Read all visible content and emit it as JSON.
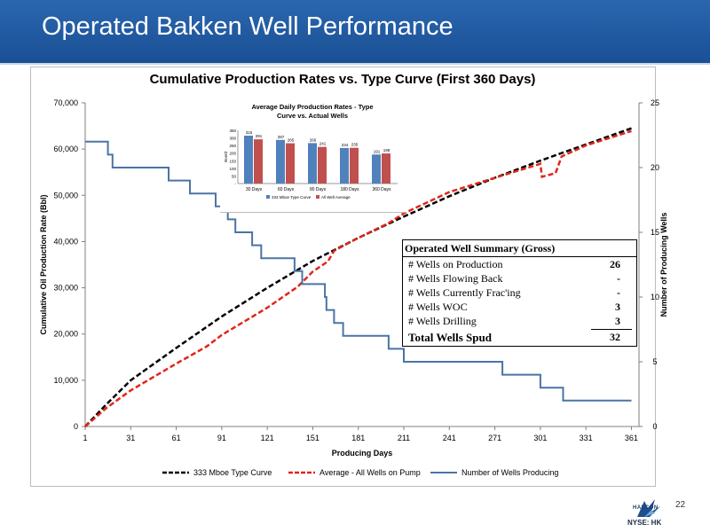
{
  "slide": {
    "title": "Operated Bakken Well Performance",
    "page_number": "22",
    "logo_text": "HALCÓN",
    "ticker": "NYSE: HK"
  },
  "summary": {
    "title": "Operated Well Summary (Gross)",
    "rows": [
      {
        "label": "# Wells on Production",
        "value": "26"
      },
      {
        "label": "# Wells Flowing Back",
        "value": "-"
      },
      {
        "label": "# Wells Currently Frac'ing",
        "value": "-"
      },
      {
        "label": "# Wells WOC",
        "value": "3"
      },
      {
        "label": "# Wells Drilling",
        "value": "3"
      }
    ],
    "total_label": "Total Wells Spud",
    "total_value": "32"
  },
  "colors": {
    "type_curve": "#000000",
    "average": "#e0261b",
    "wells": "#4a74a6",
    "header": "#1f5aa2"
  },
  "chart_data": [
    {
      "type": "line",
      "title": "Cumulative Production Rates vs. Type Curve (First 360 Days)",
      "xlabel": "Producing Days",
      "ylabel": "Cumulative Oil Production Rate (Bbl)",
      "y2label": "Number of Producing Wells",
      "xlim": [
        1,
        366
      ],
      "ylim": [
        0,
        70000
      ],
      "y2lim": [
        0,
        25
      ],
      "x_ticks": [
        1,
        31,
        61,
        91,
        121,
        151,
        181,
        211,
        241,
        271,
        301,
        331,
        361
      ],
      "y_ticks": [
        0,
        10000,
        20000,
        30000,
        40000,
        50000,
        60000,
        70000
      ],
      "y_tick_labels": [
        "0",
        "10,000",
        "20,000",
        "30,000",
        "40,000",
        "50,000",
        "60,000",
        "70,000"
      ],
      "y2_ticks": [
        0,
        5,
        10,
        15,
        20,
        25
      ],
      "grid": false,
      "legend_position": "bottom",
      "series": [
        {
          "name": "333 Mboe Type Curve",
          "axis": "left",
          "style": "dashed",
          "color": "#000000",
          "x": [
            1,
            15,
            31,
            61,
            91,
            121,
            151,
            181,
            211,
            241,
            271,
            301,
            331,
            361
          ],
          "y": [
            0,
            4800,
            10000,
            17000,
            23800,
            30000,
            35800,
            40800,
            45400,
            49800,
            53800,
            57500,
            61000,
            64500
          ]
        },
        {
          "name": "Average - All Wells on Pump",
          "axis": "left",
          "style": "dashed",
          "color": "#e0261b",
          "x": [
            1,
            15,
            31,
            61,
            81,
            91,
            121,
            141,
            151,
            161,
            165,
            181,
            201,
            211,
            241,
            271,
            291,
            301,
            302,
            311,
            315,
            331,
            361
          ],
          "y": [
            0,
            4000,
            7800,
            13600,
            17300,
            19800,
            25700,
            30200,
            33500,
            35700,
            38000,
            40800,
            44000,
            46100,
            50700,
            53800,
            55800,
            56800,
            54000,
            54800,
            58400,
            60800,
            63900
          ]
        },
        {
          "name": "Number of Wells Producing",
          "axis": "right",
          "style": "solid",
          "step": true,
          "color": "#4a74a6",
          "x": [
            1,
            13,
            16,
            19,
            49,
            56,
            70,
            80,
            87,
            90,
            95,
            100,
            111,
            115,
            117,
            129,
            139,
            141,
            144,
            159,
            160,
            163,
            165,
            171,
            201,
            202,
            207,
            211,
            221,
            241,
            276,
            301,
            311,
            316,
            331,
            361
          ],
          "y": [
            22,
            22,
            21,
            20,
            20,
            19,
            18,
            18,
            17,
            17,
            16,
            15,
            14,
            14,
            13,
            13,
            12,
            12,
            11,
            10,
            9,
            9,
            8,
            7,
            6,
            6,
            6,
            5,
            5,
            5,
            4,
            3,
            3,
            2,
            2,
            2
          ]
        }
      ]
    },
    {
      "type": "bar",
      "title": "Average Daily Production Rates - Type Curve vs. Actual Wells",
      "ylabel": "Boe/d",
      "categories": [
        "30 Days",
        "60 Days",
        "90 Days",
        "180 Days",
        "360 Days"
      ],
      "ylim": [
        0,
        350
      ],
      "y_ticks": [
        0,
        50,
        100,
        150,
        200,
        250,
        300,
        350
      ],
      "legend_position": "bottom",
      "series": [
        {
          "name": "333 Mboe Type Curve",
          "color": "#4f81bd",
          "values": [
            315,
            287,
            266,
            234,
            191
          ],
          "labels": [
            "315",
            "287",
            "266",
            "234",
            "191"
          ]
        },
        {
          "name": "All Well Average",
          "color": "#c0504d",
          "values": [
            291,
            265,
            241,
            235,
            198
          ],
          "labels": [
            "291",
            "265",
            "241",
            "235",
            "198"
          ]
        }
      ]
    }
  ]
}
